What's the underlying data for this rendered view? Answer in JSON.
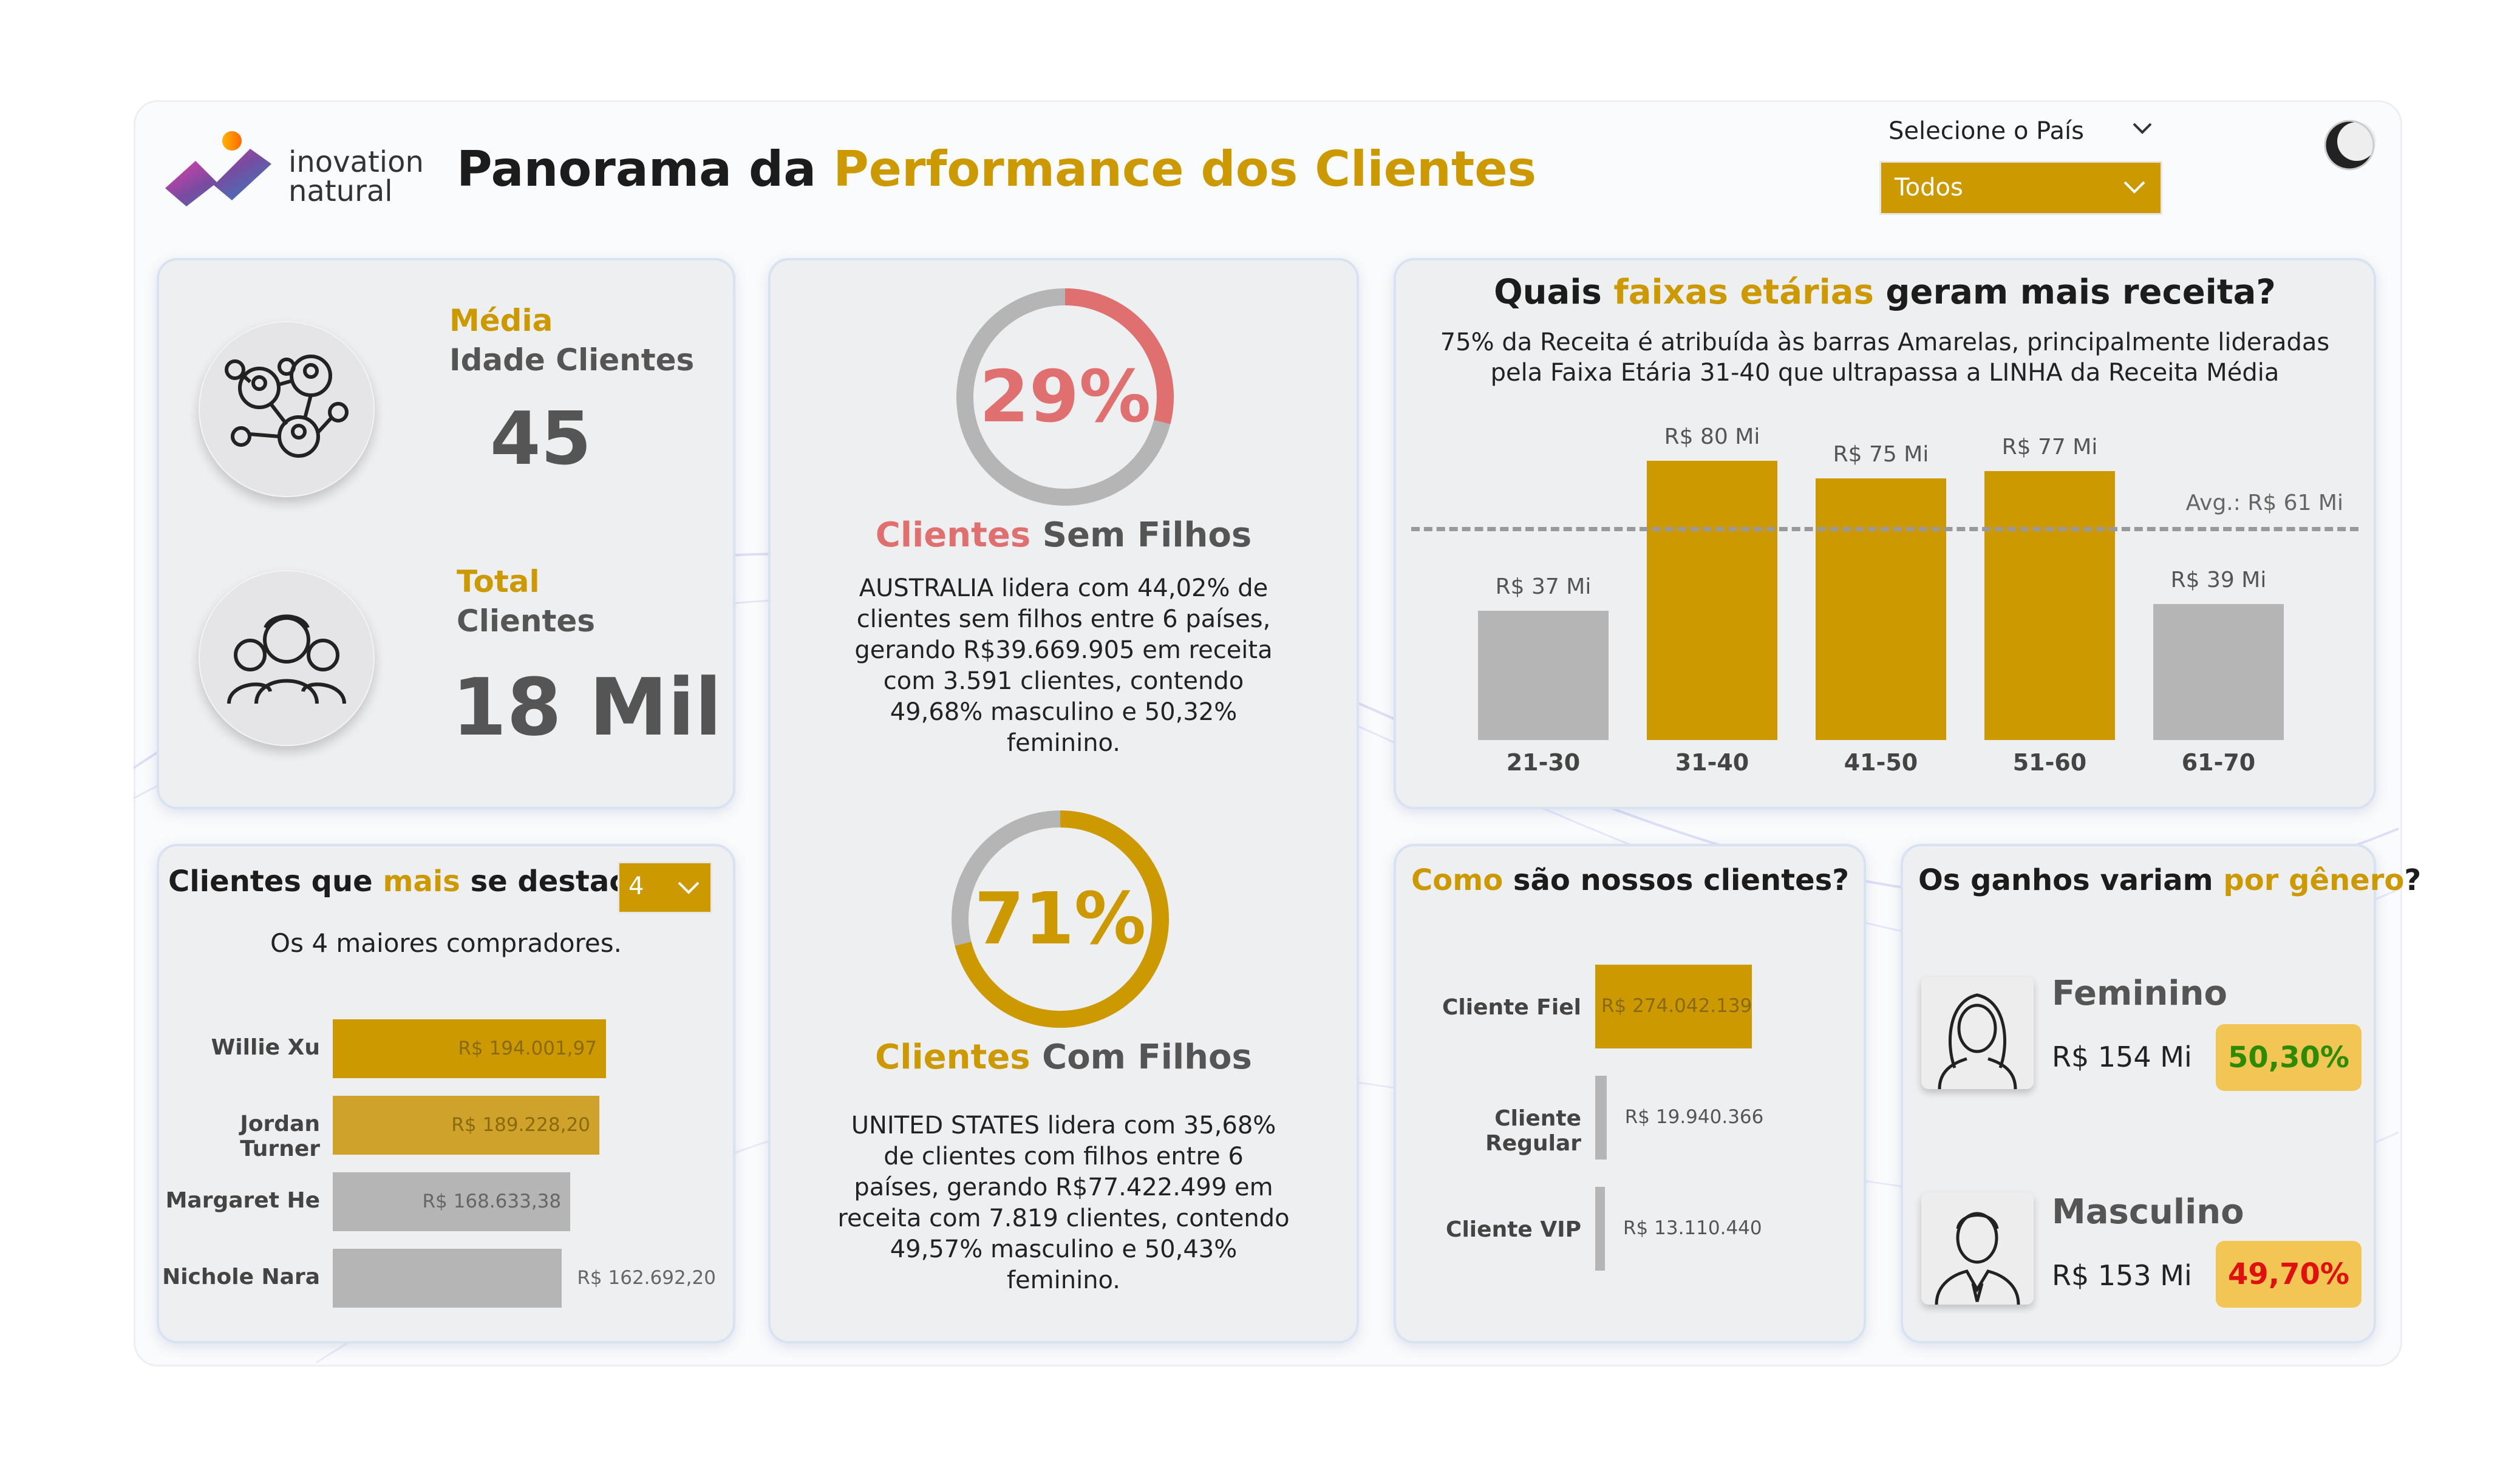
{
  "header": {
    "brand_line1": "inovation",
    "brand_line2": "natural",
    "title_part1": "Panorama da ",
    "title_part2": "Performance dos Clientes",
    "country_label": "Selecione o País",
    "country_value": "Todos"
  },
  "kpis": {
    "avg_label": "Média",
    "avg_sub": "Idade Clientes",
    "avg_value": "45",
    "total_label": "Total",
    "total_sub": "Clientes",
    "total_value": "18 Mil"
  },
  "no_children": {
    "percent": "29%",
    "percent_num": 29,
    "title_part1": "Clientes",
    "title_part2": " Sem Filhos",
    "text": "AUSTRALIA lidera com 44,02% de clientes sem filhos entre 6 países, gerando R$39.669.905 em receita com 3.591 clientes, contendo 49,68% masculino e 50,32% feminino."
  },
  "with_children": {
    "percent": "71%",
    "percent_num": 71,
    "title_part1": "Clientes",
    "title_part2": " Com Filhos",
    "text": "UNITED STATES lidera com 35,68% de clientes com filhos entre 6 países, gerando R$77.422.499 em receita com 7.819 clientes, contendo 49,57% masculino e 50,43% feminino."
  },
  "top_clients": {
    "title_part1": "Clientes que ",
    "title_part2": "mais",
    "title_part3": " se destacam",
    "selector_value": "4",
    "subtitle": "Os 4 maiores compradores.",
    "chart_data": {
      "type": "bar",
      "orientation": "horizontal",
      "categories": [
        "Willie Xu",
        "Jordan Turner",
        "Margaret He",
        "Nichole Nara"
      ],
      "values": [
        194001.97,
        189228.2,
        168633.38,
        162692.2
      ],
      "value_labels": [
        "R$ 194.001,97",
        "R$ 189.228,20",
        "R$ 168.633,38",
        "R$ 162.692,20"
      ],
      "colors": [
        "#cc9a00",
        "#cfa22a",
        "#b5b5b5",
        "#b5b5b5"
      ]
    }
  },
  "age_chart": {
    "title_part1": "Quais ",
    "title_part2": "faixas etárias",
    "title_part3": " geram mais receita?",
    "subtitle": "75% da Receita é atribuída às barras Amarelas, principalmente lideradas pela Faixa Etária 31-40 que ultrapassa a LINHA da Receita Média",
    "avg_label": "Avg.: R$ 61 Mi",
    "chart_data": {
      "type": "bar",
      "categories": [
        "21-30",
        "31-40",
        "41-50",
        "51-60",
        "61-70"
      ],
      "values": [
        37,
        80,
        75,
        77,
        39
      ],
      "value_labels": [
        "R$ 37 Mi",
        "R$ 80 Mi",
        "R$ 75 Mi",
        "R$ 77 Mi",
        "R$ 39 Mi"
      ],
      "average": 61,
      "ylim": [
        0,
        85
      ],
      "colors": [
        "#b5b5b5",
        "#cc9a00",
        "#cc9a00",
        "#cc9a00",
        "#b5b5b5"
      ]
    }
  },
  "client_types": {
    "title_part1": "Como",
    "title_part2": " são nossos clientes?",
    "chart_data": {
      "type": "bar",
      "orientation": "horizontal",
      "categories": [
        "Cliente Fiel",
        "Cliente Regular",
        "Cliente VIP"
      ],
      "values": [
        274042139,
        19940366,
        13110440
      ],
      "value_labels": [
        "R$ 274.042.139",
        "R$ 19.940.366",
        "R$ 13.110.440"
      ],
      "colors": [
        "#cc9a00",
        "#b5b5b5",
        "#b5b5b5"
      ]
    }
  },
  "gender": {
    "title_part1": "Os ganhos variam ",
    "title_part2": "por gênero",
    "title_part3": "?",
    "female_label": "Feminino",
    "female_value": "R$ 154 Mi",
    "female_pct": "50,30%",
    "male_label": "Masculino",
    "male_value": "R$ 153 Mi",
    "male_pct": "49,70%",
    "female_pct_color": "#2e8b00",
    "male_pct_color": "#e01010"
  }
}
